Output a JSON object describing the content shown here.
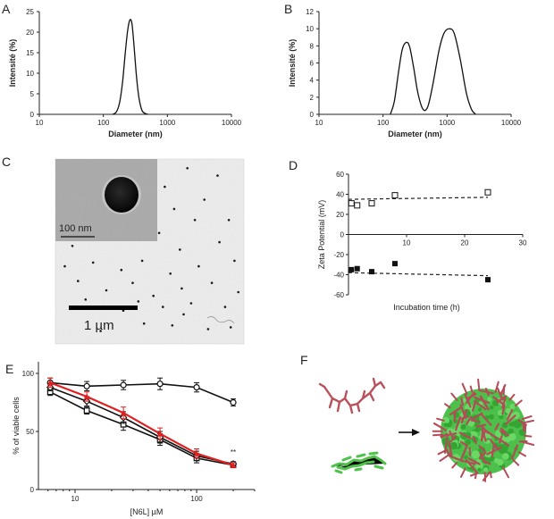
{
  "panel_labels": [
    "A",
    "B",
    "C",
    "D",
    "E",
    "F"
  ],
  "chart_data": [
    {
      "panel": "A",
      "type": "line",
      "xscale": "log",
      "xlabel": "Diameter (nm)",
      "ylabel": "Intensité (%)",
      "xlim": [
        10,
        10000
      ],
      "ylim": [
        0,
        25
      ],
      "xticks": [
        "10",
        "100",
        "1000",
        "10000"
      ],
      "yticks": [
        "0",
        "5",
        "10",
        "15",
        "20",
        "25"
      ],
      "series": [
        {
          "x": [
            140,
            160,
            180,
            200,
            220,
            240,
            260,
            280,
            300,
            330,
            360,
            400,
            450,
            500
          ],
          "y": [
            0,
            0.6,
            3,
            8,
            15,
            20.5,
            23,
            22,
            17,
            9,
            4,
            1,
            0.2,
            0
          ]
        }
      ]
    },
    {
      "panel": "B",
      "type": "line",
      "xscale": "log",
      "xlabel": "Diameter (nm)",
      "ylabel": "Intensité (%)",
      "xlim": [
        10,
        10000
      ],
      "ylim": [
        0,
        12
      ],
      "xticks": [
        "10",
        "100",
        "1000",
        "10000"
      ],
      "yticks": [
        "0",
        "2",
        "4",
        "6",
        "8",
        "10",
        "12"
      ],
      "series": [
        {
          "x": [
            130,
            150,
            175,
            200,
            230,
            260,
            300,
            350,
            420,
            500,
            600,
            750,
            900,
            1100,
            1300,
            1600,
            2000,
            2400,
            2800
          ],
          "y": [
            0,
            1.5,
            5,
            7.6,
            8.4,
            7.9,
            5.5,
            2.5,
            0.6,
            0.9,
            3.5,
            7.5,
            9.5,
            10,
            9.4,
            6.5,
            2.5,
            0.6,
            0
          ]
        }
      ]
    },
    {
      "panel": "D",
      "type": "scatter",
      "xlabel": "Incubation time (h)",
      "ylabel": "Zeta Potential (mV)",
      "xlim": [
        0,
        30
      ],
      "ylim": [
        -60,
        60
      ],
      "xticks": [
        "10",
        "20",
        "30"
      ],
      "yticks": [
        "-60",
        "-40",
        "-20",
        "0",
        "20",
        "40",
        "60"
      ],
      "series": [
        {
          "marker": "open-square",
          "x": [
            0.5,
            1.5,
            4,
            8,
            24
          ],
          "y": [
            31,
            29,
            31,
            39,
            42
          ],
          "fit": [
            [
              0,
              35
            ],
            [
              24,
              37
            ]
          ]
        },
        {
          "marker": "filled-square",
          "x": [
            0.5,
            1.5,
            4,
            8,
            24
          ],
          "y": [
            -35,
            -34,
            -37,
            -29,
            -45
          ],
          "fit": [
            [
              0,
              -38
            ],
            [
              24,
              -41
            ]
          ]
        }
      ]
    },
    {
      "panel": "E",
      "type": "line",
      "xscale": "log",
      "xlabel": "[N6L] µM",
      "ylabel": "% of viable cells",
      "xlim": [
        5,
        300
      ],
      "ylim": [
        0,
        110
      ],
      "xticks": [
        "10",
        "100"
      ],
      "yticks": [
        "0",
        "50",
        "100"
      ],
      "annotation": "**",
      "series": [
        {
          "marker": "open-circle",
          "color": "#111111",
          "x": [
            6.25,
            12.5,
            25,
            50,
            100,
            200
          ],
          "y": [
            92,
            89,
            90,
            91,
            88,
            75
          ],
          "err": [
            4,
            4,
            4,
            5,
            4,
            3
          ]
        },
        {
          "marker": "open-square",
          "color": "#111111",
          "x": [
            6.25,
            12.5,
            25,
            50,
            100,
            200
          ],
          "y": [
            84,
            68,
            56,
            43,
            27,
            21
          ],
          "err": [
            3,
            3,
            5,
            5,
            4,
            2
          ]
        },
        {
          "marker": "open-diamond",
          "color": "#111111",
          "x": [
            6.25,
            12.5,
            25,
            50,
            100,
            200
          ],
          "y": [
            88,
            76,
            62,
            45,
            29,
            22
          ],
          "err": [
            3,
            4,
            5,
            5,
            4,
            2
          ]
        },
        {
          "marker": "filled-triangle",
          "color": "#e02020",
          "x": [
            6.25,
            12.5,
            25,
            50,
            100,
            200
          ],
          "y": [
            92,
            80,
            66,
            48,
            31,
            21
          ],
          "err": [
            4,
            4,
            5,
            5,
            4,
            2
          ]
        }
      ]
    }
  ],
  "panel_c": {
    "inset_scale_label": "100 nm",
    "scale_label": "1 µm",
    "dots": [
      [
        0.16,
        0.08
      ],
      [
        0.3,
        0.07
      ],
      [
        0.5,
        0.04
      ],
      [
        0.7,
        0.05
      ],
      [
        0.86,
        0.09
      ],
      [
        0.58,
        0.15
      ],
      [
        0.63,
        0.27
      ],
      [
        0.79,
        0.22
      ],
      [
        0.92,
        0.33
      ],
      [
        0.74,
        0.33
      ],
      [
        0.55,
        0.4
      ],
      [
        0.87,
        0.45
      ],
      [
        0.66,
        0.49
      ],
      [
        0.95,
        0.55
      ],
      [
        0.05,
        0.58
      ],
      [
        0.2,
        0.56
      ],
      [
        0.35,
        0.6
      ],
      [
        0.46,
        0.55
      ],
      [
        0.61,
        0.62
      ],
      [
        0.76,
        0.58
      ],
      [
        0.12,
        0.66
      ],
      [
        0.27,
        0.71
      ],
      [
        0.41,
        0.67
      ],
      [
        0.52,
        0.74
      ],
      [
        0.67,
        0.7
      ],
      [
        0.83,
        0.67
      ],
      [
        0.97,
        0.72
      ],
      [
        0.16,
        0.76
      ],
      [
        0.36,
        0.82
      ],
      [
        0.57,
        0.8
      ],
      [
        0.72,
        0.78
      ],
      [
        0.9,
        0.8
      ],
      [
        0.47,
        0.89
      ],
      [
        0.62,
        0.9
      ],
      [
        0.81,
        0.92
      ],
      [
        0.24,
        0.93
      ],
      [
        0.93,
        0.91
      ],
      [
        0.09,
        0.47
      ],
      [
        0.68,
        0.84
      ],
      [
        0.44,
        0.77
      ]
    ]
  },
  "panel_f": {
    "arrow": "→"
  }
}
